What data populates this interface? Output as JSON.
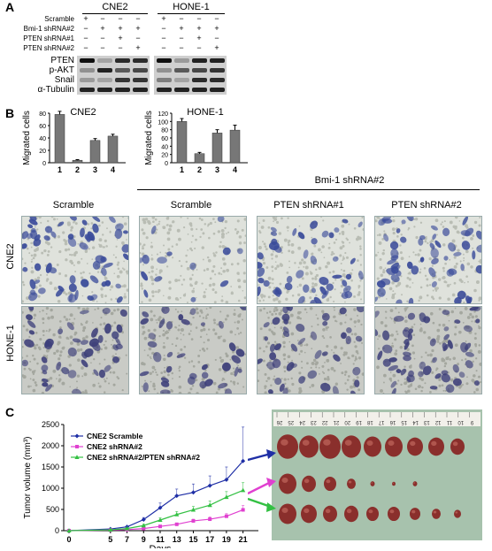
{
  "panel_labels": {
    "a": "A",
    "b": "B",
    "c": "C"
  },
  "panelA": {
    "cell_lines": [
      "CNE2",
      "HONE-1"
    ],
    "conditions": [
      {
        "label": "Scramble",
        "signs": [
          "+",
          "−",
          "−",
          "−"
        ]
      },
      {
        "label": "Bmi-1 shRNA#2",
        "signs": [
          "−",
          "+",
          "+",
          "+"
        ]
      },
      {
        "label": "PTEN shRNA#1",
        "signs": [
          "−",
          "−",
          "+",
          "−"
        ]
      },
      {
        "label": "PTEN shRNA#2",
        "signs": [
          "−",
          "−",
          "−",
          "+"
        ]
      }
    ],
    "blot_rows": [
      "PTEN",
      "p-AKT",
      "Snail",
      "α-Tubulin"
    ]
  },
  "chart_data": [
    {
      "type": "bar",
      "title": "CNE2",
      "ylabel": "Migrated cells",
      "categories": [
        "1",
        "2",
        "3",
        "4"
      ],
      "values": [
        78,
        4,
        36,
        43
      ],
      "errors": [
        5,
        1,
        3,
        3
      ],
      "ylim": [
        0,
        80
      ],
      "yticks": [
        0,
        20,
        40,
        60,
        80
      ]
    },
    {
      "type": "bar",
      "title": "HONE-1",
      "ylabel": "Migrated cells",
      "categories": [
        "1",
        "2",
        "3",
        "4"
      ],
      "values": [
        100,
        22,
        72,
        79
      ],
      "errors": [
        7,
        3,
        8,
        12
      ],
      "ylim": [
        0,
        120
      ],
      "yticks": [
        0,
        20,
        40,
        60,
        80,
        100,
        120
      ]
    },
    {
      "type": "line",
      "xlabel": "Days",
      "ylabel": "Tumor volume (mm³)",
      "x": [
        0,
        5,
        7,
        9,
        11,
        13,
        15,
        17,
        19,
        21
      ],
      "xticks": [
        0,
        5,
        7,
        9,
        11,
        13,
        15,
        17,
        19,
        21
      ],
      "ylim": [
        0,
        2500
      ],
      "yticks": [
        0,
        500,
        1000,
        1500,
        2000,
        2500
      ],
      "series": [
        {
          "name": "CNE2 Scramble",
          "color": "#1f2fa6",
          "values": [
            0,
            40,
            90,
            260,
            540,
            820,
            900,
            1060,
            1200,
            1640
          ],
          "errors": [
            0,
            10,
            20,
            50,
            110,
            160,
            200,
            230,
            300,
            800
          ]
        },
        {
          "name": "CNE2 shRNA#2",
          "color": "#e040d0",
          "values": [
            0,
            15,
            25,
            50,
            100,
            150,
            230,
            270,
            340,
            490
          ],
          "errors": [
            0,
            5,
            8,
            15,
            20,
            30,
            40,
            50,
            60,
            100
          ]
        },
        {
          "name": "CNE2 shRNA#2/PTEN shRNA#2",
          "color": "#33c043",
          "values": [
            0,
            20,
            50,
            120,
            250,
            380,
            490,
            600,
            790,
            950
          ],
          "errors": [
            0,
            8,
            15,
            30,
            50,
            70,
            80,
            100,
            130,
            180
          ]
        }
      ]
    }
  ],
  "micro": {
    "group_label": "Bmi-1 shRNA#2",
    "column_labels": [
      "Scramble",
      "Scramble",
      "PTEN shRNA#1",
      "PTEN shRNA#2"
    ],
    "row_labels": [
      "CNE2",
      "HONE-1"
    ]
  },
  "ruler_numbers": [
    "26",
    "25",
    "24",
    "23",
    "22",
    "21",
    "20",
    "19",
    "18",
    "17",
    "16",
    "15",
    "14",
    "13",
    "12",
    "11",
    "10",
    "9"
  ]
}
